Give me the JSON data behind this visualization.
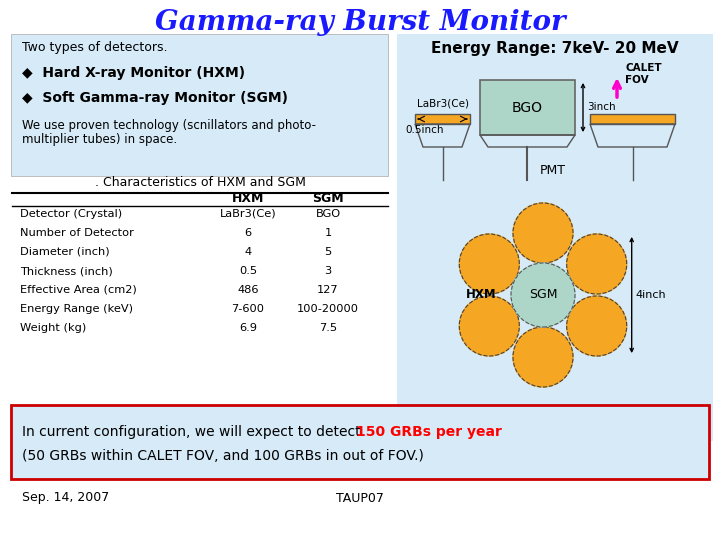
{
  "title": "Gamma-ray Burst Monitor",
  "title_color": "#1a1aff",
  "title_fontsize": 20,
  "energy_range_label": "Energy Range: 7keV- 20 MeV",
  "left_box_text_0": "Two types of detectors.",
  "left_box_text_1": "◆  Hard X-ray Monitor (HXM)",
  "left_box_text_2": "◆  Soft Gamma-ray Monitor (SGM)",
  "left_box_text_3a": "We use proven technology (scnillators and photo-",
  "left_box_text_3b": "multiplier tubes) in space.",
  "table_title": ". Characteristics of HXM and SGM",
  "table_headers": [
    "",
    "HXM",
    "SGM"
  ],
  "table_rows": [
    [
      "Detector (Crystal)",
      "LaBr3(Ce)",
      "BGO"
    ],
    [
      "Number of Detector",
      "6",
      "1"
    ],
    [
      "Diameter (inch)",
      "4",
      "5"
    ],
    [
      "Thickness (inch)",
      "0.5",
      "3"
    ],
    [
      "Effective Area (cm2)",
      "486",
      "127"
    ],
    [
      "Energy Range (keV)",
      "7-600",
      "100-20000"
    ],
    [
      "Weight (kg)",
      "6.9",
      "7.5"
    ]
  ],
  "bottom_text_black1": "In current configuration, we will expect to detect ",
  "bottom_text_red": "150 GRBs per year",
  "bottom_text_black2": "(50 GRBs within CALET FOV, and 100 GRBs in out of FOV.)",
  "footer_left": "Sep. 14, 2007",
  "footer_right": "TAUP07",
  "bg_color": "#ffffff",
  "left_panel_bg": "#d6eaf8",
  "right_panel_bg": "#d6eaf8",
  "bottom_box_bg": "#d6eaf8",
  "orange_color": "#f5a623",
  "teal_color": "#aed6c8",
  "arrow_color": "#ff00cc",
  "line_color": "#555555"
}
